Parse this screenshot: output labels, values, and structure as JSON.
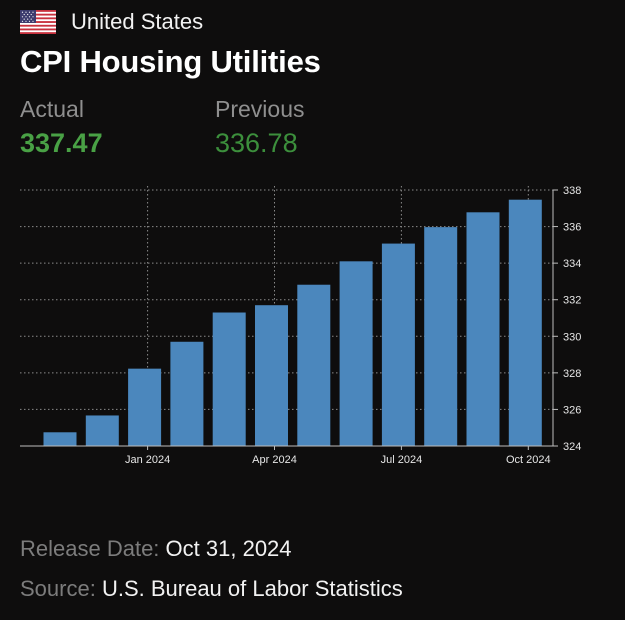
{
  "header": {
    "country": "United States",
    "flag_icon": "us-flag-icon",
    "title": "CPI Housing Utilities"
  },
  "stats": {
    "actual_label": "Actual",
    "actual_value": "337.47",
    "previous_label": "Previous",
    "previous_value": "336.78"
  },
  "footer": {
    "release_label": "Release Date:",
    "release_value": "Oct 31, 2024",
    "source_label": "Source:",
    "source_value": "U.S. Bureau of Labor Statistics"
  },
  "colors": {
    "bar": "#4b87bd",
    "actual": "#49a145",
    "previous": "#3c8f3c",
    "background": "#0e0d0d"
  },
  "chart_data": {
    "type": "bar",
    "categories": [
      "2023-11",
      "2023-12",
      "2024-01",
      "2024-02",
      "2024-03",
      "2024-04",
      "2024-05",
      "2024-06",
      "2024-07",
      "2024-08",
      "2024-09",
      "2024-10"
    ],
    "values": [
      324.75,
      325.67,
      328.23,
      329.7,
      331.3,
      331.7,
      332.82,
      334.1,
      335.07,
      335.97,
      336.78,
      337.47
    ],
    "ylim": [
      324,
      338
    ],
    "y_ticks": [
      "324",
      "326",
      "328",
      "330",
      "332",
      "334",
      "336",
      "338"
    ],
    "x_tick_labels": [
      {
        "category": "2024-01",
        "label": "Jan 2024"
      },
      {
        "category": "2024-04",
        "label": "Apr 2024"
      },
      {
        "category": "2024-07",
        "label": "Jul 2024"
      },
      {
        "category": "2024-10",
        "label": "Oct 2024"
      }
    ],
    "grid": true,
    "y_axis_position": "right"
  }
}
